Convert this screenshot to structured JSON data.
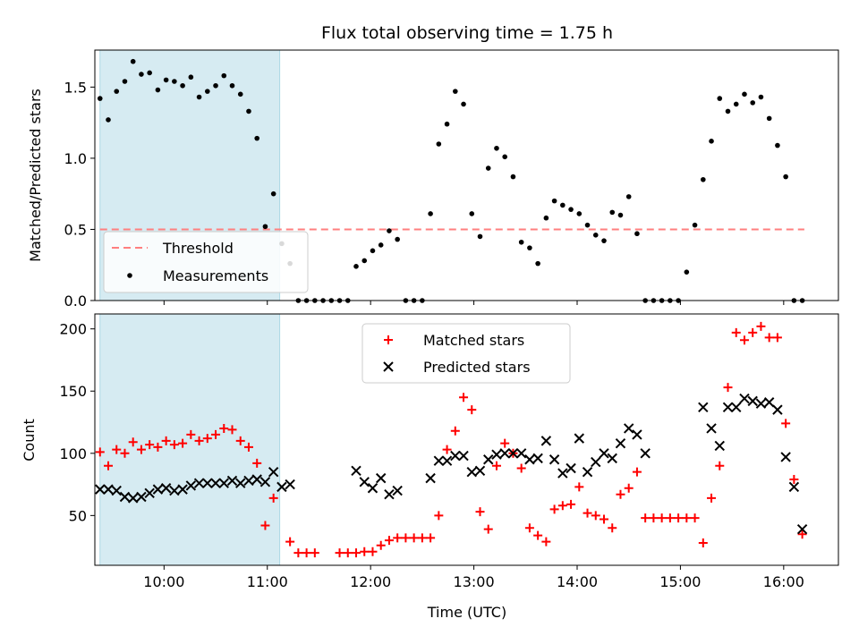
{
  "chart_data": {
    "type": "scatter",
    "title": "Flux total observing time = 1.75 h",
    "xlabel": "Time (UTC)",
    "xlim": [
      9.33,
      16.53
    ],
    "xticks": [
      {
        "value": 10,
        "label": "10:00"
      },
      {
        "value": 11,
        "label": "11:00"
      },
      {
        "value": 12,
        "label": "12:00"
      },
      {
        "value": 13,
        "label": "13:00"
      },
      {
        "value": 14,
        "label": "14:00"
      },
      {
        "value": 15,
        "label": "15:00"
      },
      {
        "value": 16,
        "label": "16:00"
      }
    ],
    "shaded_span": {
      "x": [
        9.38,
        11.12
      ],
      "color": "#add8e6"
    },
    "top": {
      "ylabel": "Matched/Predicted stars",
      "ylim": [
        0,
        1.76
      ],
      "yticks": [
        {
          "value": 0,
          "label": "0.0"
        },
        {
          "value": 0.5,
          "label": "0.5"
        },
        {
          "value": 1.0,
          "label": "1.0"
        },
        {
          "value": 1.5,
          "label": "1.5"
        }
      ],
      "legend": {
        "placement": "lower-left",
        "entries": [
          "Threshold",
          "Measurements"
        ]
      },
      "threshold": {
        "name": "Threshold",
        "y": 0.5,
        "x": [
          9.38,
          16.2
        ],
        "color": "#ff7f7f"
      },
      "measurements": {
        "name": "Measurements",
        "color": "#000000",
        "x": [
          9.38,
          9.46,
          9.54,
          9.62,
          9.7,
          9.78,
          9.86,
          9.94,
          10.02,
          10.1,
          10.18,
          10.26,
          10.34,
          10.42,
          10.5,
          10.58,
          10.66,
          10.74,
          10.82,
          10.9,
          10.98,
          11.06,
          11.14,
          11.22,
          11.3,
          11.38,
          11.46,
          11.54,
          11.62,
          11.7,
          11.78,
          11.86,
          11.94,
          12.02,
          12.1,
          12.18,
          12.26,
          12.34,
          12.42,
          12.5,
          12.58,
          12.66,
          12.74,
          12.82,
          12.9,
          12.98,
          13.06,
          13.14,
          13.22,
          13.3,
          13.38,
          13.46,
          13.54,
          13.62,
          13.7,
          13.78,
          13.86,
          13.94,
          14.02,
          14.1,
          14.18,
          14.26,
          14.34,
          14.42,
          14.5,
          14.58,
          14.66,
          14.74,
          14.82,
          14.9,
          14.98,
          15.06,
          15.14,
          15.22,
          15.3,
          15.38,
          15.46,
          15.54,
          15.62,
          15.7,
          15.78,
          15.86,
          15.94,
          16.02,
          16.1,
          16.18
        ],
        "y": [
          1.42,
          1.27,
          1.47,
          1.54,
          1.68,
          1.59,
          1.6,
          1.48,
          1.55,
          1.54,
          1.51,
          1.57,
          1.43,
          1.47,
          1.51,
          1.58,
          1.51,
          1.45,
          1.33,
          1.14,
          0.52,
          0.75,
          0.4,
          0.26,
          0,
          0,
          0,
          0,
          0,
          0,
          0,
          0.24,
          0.28,
          0.35,
          0.39,
          0.49,
          0.43,
          0,
          0,
          0,
          0.61,
          1.1,
          1.24,
          1.47,
          1.38,
          0.61,
          0.45,
          0.93,
          1.07,
          1.01,
          0.87,
          0.41,
          0.37,
          0.26,
          0.58,
          0.7,
          0.67,
          0.64,
          0.61,
          0.53,
          0.46,
          0.42,
          0.62,
          0.6,
          0.73,
          0.47,
          0,
          0,
          0,
          0,
          0,
          0.2,
          0.53,
          0.85,
          1.12,
          1.42,
          1.33,
          1.38,
          1.45,
          1.39,
          1.43,
          1.28,
          1.09,
          0.87,
          0,
          0
        ]
      }
    },
    "bottom": {
      "ylabel": "Count",
      "ylim": [
        10,
        212
      ],
      "yticks": [
        {
          "value": 50,
          "label": "50"
        },
        {
          "value": 100,
          "label": "100"
        },
        {
          "value": 150,
          "label": "150"
        },
        {
          "value": 200,
          "label": "200"
        }
      ],
      "legend": {
        "placement": "upper-center",
        "entries": [
          "Matched stars",
          "Predicted stars"
        ]
      },
      "series": [
        {
          "name": "Matched stars",
          "marker": "+",
          "color": "#ff0000",
          "x": [
            9.38,
            9.46,
            9.54,
            9.62,
            9.7,
            9.78,
            9.86,
            9.94,
            10.02,
            10.1,
            10.18,
            10.26,
            10.34,
            10.42,
            10.5,
            10.58,
            10.66,
            10.74,
            10.82,
            10.9,
            10.98,
            11.06,
            11.22,
            11.3,
            11.38,
            11.46,
            11.7,
            11.78,
            11.86,
            11.94,
            12.02,
            12.1,
            12.18,
            12.26,
            12.34,
            12.42,
            12.5,
            12.58,
            12.66,
            12.74,
            12.82,
            12.9,
            12.98,
            13.06,
            13.14,
            13.22,
            13.3,
            13.38,
            13.46,
            13.54,
            13.62,
            13.7,
            13.78,
            13.86,
            13.94,
            14.02,
            14.1,
            14.18,
            14.26,
            14.34,
            14.42,
            14.5,
            14.58,
            14.66,
            14.74,
            14.82,
            14.9,
            14.98,
            15.06,
            15.14,
            15.22,
            15.3,
            15.38,
            15.46,
            15.54,
            15.62,
            15.7,
            15.78,
            15.86,
            15.94,
            16.02,
            16.1,
            16.18
          ],
          "y": [
            101,
            90,
            103,
            100,
            109,
            103,
            107,
            105,
            110,
            107,
            108,
            115,
            110,
            112,
            115,
            120,
            119,
            110,
            105,
            92,
            42,
            64,
            29,
            20,
            20,
            20,
            20,
            20,
            20,
            21,
            21,
            26,
            30,
            32,
            32,
            32,
            32,
            32,
            50,
            103,
            118,
            145,
            135,
            53,
            39,
            90,
            108,
            100,
            88,
            40,
            34,
            29,
            55,
            58,
            59,
            73,
            52,
            50,
            47,
            40,
            67,
            72,
            85,
            48,
            48,
            48,
            48,
            48,
            48,
            48,
            28,
            64,
            90,
            153,
            197,
            191,
            197,
            202,
            193,
            193,
            124,
            79,
            35
          ]
        },
        {
          "name": "Predicted stars",
          "marker": "x",
          "color": "#000000",
          "x": [
            9.38,
            9.46,
            9.54,
            9.62,
            9.7,
            9.78,
            9.86,
            9.94,
            10.02,
            10.1,
            10.18,
            10.26,
            10.34,
            10.42,
            10.5,
            10.58,
            10.66,
            10.74,
            10.82,
            10.9,
            10.98,
            11.06,
            11.14,
            11.22,
            11.86,
            11.94,
            12.02,
            12.1,
            12.18,
            12.26,
            12.58,
            12.66,
            12.74,
            12.82,
            12.9,
            12.98,
            13.06,
            13.14,
            13.22,
            13.3,
            13.38,
            13.46,
            13.54,
            13.62,
            13.7,
            13.78,
            13.86,
            13.94,
            14.02,
            14.1,
            14.18,
            14.26,
            14.34,
            14.42,
            14.5,
            14.58,
            14.66,
            15.22,
            15.3,
            15.38,
            15.46,
            15.54,
            15.62,
            15.7,
            15.78,
            15.86,
            15.94,
            16.02,
            16.1,
            16.18
          ],
          "y": [
            71,
            71,
            70,
            65,
            64,
            65,
            68,
            71,
            72,
            70,
            71,
            74,
            76,
            76,
            76,
            76,
            78,
            76,
            78,
            79,
            77,
            85,
            73,
            75,
            86,
            77,
            72,
            80,
            67,
            70,
            80,
            94,
            94,
            98,
            98,
            85,
            86,
            95,
            99,
            100,
            100,
            100,
            95,
            96,
            110,
            95,
            84,
            88,
            112,
            85,
            93,
            100,
            96,
            108,
            120,
            115,
            100,
            137,
            120,
            106,
            137,
            137,
            144,
            142,
            140,
            141,
            135,
            97,
            73,
            39
          ]
        }
      ]
    }
  }
}
